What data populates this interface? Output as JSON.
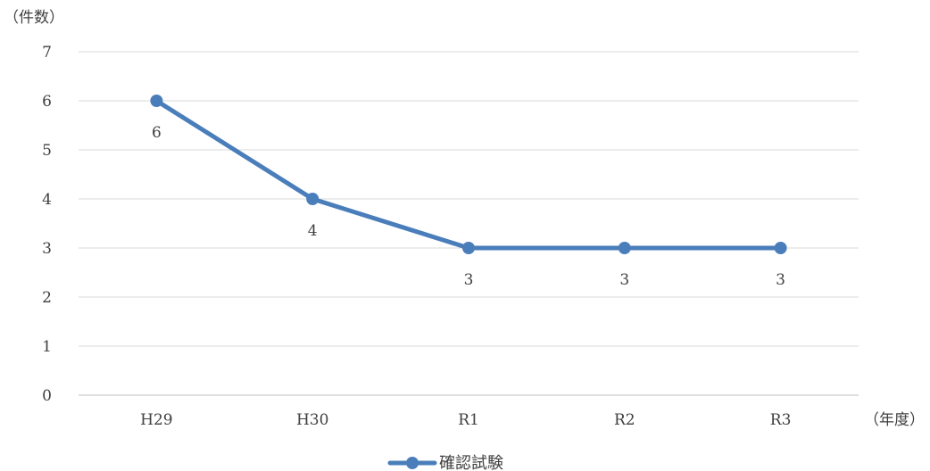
{
  "chart_data": {
    "type": "line",
    "ylabel": "（件数）",
    "xlabel": "（年度）",
    "categories": [
      "H29",
      "H30",
      "R1",
      "R2",
      "R3"
    ],
    "series": [
      {
        "name": "確認試験",
        "values": [
          6,
          4,
          3,
          3,
          3
        ],
        "data_labels": [
          "6",
          "4",
          "3",
          "3",
          "3"
        ],
        "color": "#4a7ebb"
      }
    ],
    "ylim": [
      0,
      7
    ],
    "yticks": [
      "0",
      "1",
      "2",
      "3",
      "4",
      "5",
      "6",
      "7"
    ],
    "grid": true,
    "gridline_color": "#d9d9d9",
    "legend": "bottom-center"
  }
}
